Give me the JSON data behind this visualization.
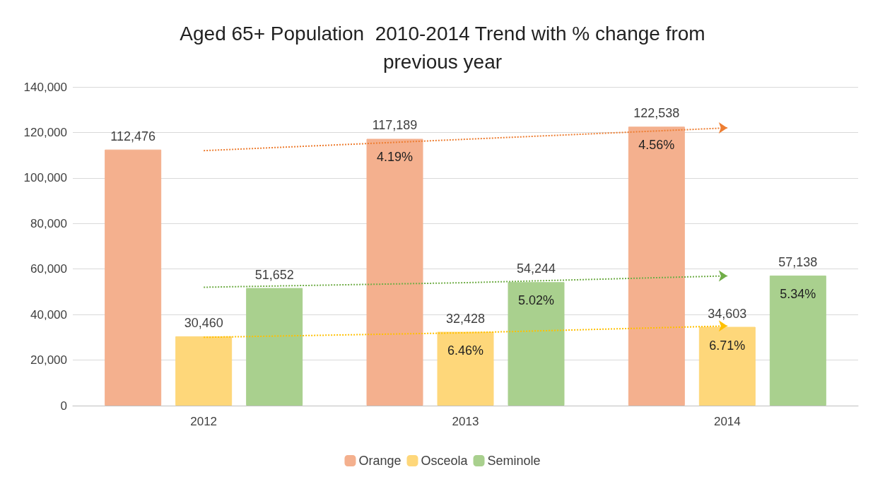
{
  "chart_data": {
    "type": "bar",
    "title": "Aged 65+ Population  2010-2014 Trend with % change from\nprevious year",
    "categories": [
      "2012",
      "2013",
      "2014"
    ],
    "series": [
      {
        "name": "Orange",
        "color": "#f4b08e",
        "values": [
          112476,
          117189,
          122538
        ],
        "value_labels": [
          "112,476",
          "117,189",
          "122,538"
        ]
      },
      {
        "name": "Osceola",
        "color": "#fed77a",
        "values": [
          30460,
          32428,
          34603
        ],
        "value_labels": [
          "30,460",
          "32,428",
          "34,603"
        ]
      },
      {
        "name": "Seminole",
        "color": "#a9d08e",
        "values": [
          51652,
          54244,
          57138
        ],
        "value_labels": [
          "51,652",
          "54,244",
          "57,138"
        ]
      },
      {
        "type": "line",
        "color": "#ed7d31",
        "line_style": "dotted",
        "values": [
          112000,
          117000,
          122000
        ]
      },
      {
        "type": "line",
        "color": "#ffc000",
        "line_style": "dotted",
        "values": [
          30000,
          32000,
          35000
        ]
      },
      {
        "type": "line",
        "color": "#70ad47",
        "line_style": "dotted",
        "values": [
          52000,
          54000,
          57000
        ]
      }
    ],
    "ylim": [
      0,
      140000
    ],
    "yticks": [
      0,
      {
        "value": 20000,
        "label": "20,000"
      },
      {
        "value": 40000,
        "label": "40,000"
      },
      {
        "value": 60000,
        "label": "60,000"
      },
      {
        "value": 80000,
        "label": "80,000"
      },
      {
        "value": 100000,
        "label": "100,000"
      },
      {
        "value": 120000,
        "label": "120,000"
      },
      {
        "value": 140000,
        "label": "140,000"
      }
    ],
    "grid": "y",
    "legend": "bottom",
    "annotations": [
      "4.19%",
      "4.56%",
      "6.46%",
      "6.71%",
      "5.02%",
      "5.34%"
    ]
  }
}
